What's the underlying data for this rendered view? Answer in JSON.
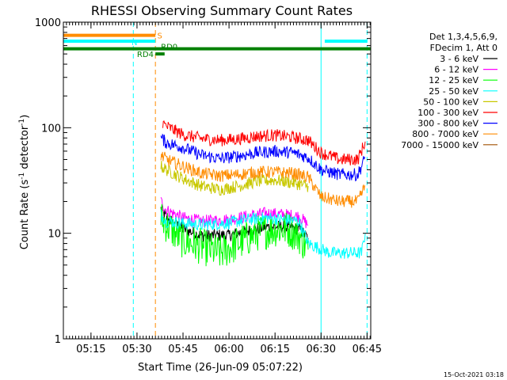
{
  "chart_data": {
    "type": "line",
    "title": "RHESSI Observing Summary Count Rates",
    "xlabel": "Start Time (26-Jun-09 05:07:22)",
    "ylabel_main": "Count Rate (s",
    "ylabel_sup1": "-1",
    "ylabel_mid": " detector",
    "ylabel_sup2": "-1",
    "ylabel_end": ")",
    "yscale": "log",
    "ylim": [
      1,
      1000
    ],
    "xlim_minutes": [
      5.1,
      6.77
    ],
    "x_ticks": [
      {
        "v": 5.25,
        "label": "05:15"
      },
      {
        "v": 5.5,
        "label": "05:30"
      },
      {
        "v": 5.75,
        "label": "05:45"
      },
      {
        "v": 6.0,
        "label": "06:00"
      },
      {
        "v": 6.25,
        "label": "06:15"
      },
      {
        "v": 6.5,
        "label": "06:30"
      },
      {
        "v": 6.75,
        "label": "06:45"
      }
    ],
    "y_ticks": [
      {
        "v": 1,
        "label": "1"
      },
      {
        "v": 10,
        "label": "10"
      },
      {
        "v": 100,
        "label": "100"
      },
      {
        "v": 1000,
        "label": "1000"
      }
    ],
    "legend": {
      "placement": "right",
      "header": [
        "Det 1,3,4,5,6,9,",
        "FDecim 1, Att 0"
      ]
    },
    "series": [
      {
        "name": "3 - 6 keV",
        "color": "#000000",
        "values": [
          [
            5.63,
            17
          ],
          [
            5.66,
            14
          ],
          [
            5.75,
            11
          ],
          [
            5.85,
            9.5
          ],
          [
            6.0,
            9.6
          ],
          [
            6.1,
            10.5
          ],
          [
            6.2,
            11.5
          ],
          [
            6.3,
            11.5
          ],
          [
            6.38,
            11
          ],
          [
            6.43,
            9
          ]
        ]
      },
      {
        "name": "6 - 12 keV",
        "color": "#ff00ff",
        "values": [
          [
            5.63,
            20
          ],
          [
            5.66,
            16.5
          ],
          [
            5.75,
            14
          ],
          [
            5.85,
            13
          ],
          [
            6.0,
            13.5
          ],
          [
            6.1,
            14.5
          ],
          [
            6.2,
            15.5
          ],
          [
            6.3,
            15
          ],
          [
            6.38,
            14.5
          ],
          [
            6.43,
            12
          ]
        ]
      },
      {
        "name": "12 - 25 keV",
        "color": "#00ff00",
        "values": [
          [
            5.63,
            14
          ],
          [
            5.66,
            12
          ],
          [
            5.75,
            8.5
          ],
          [
            5.85,
            7.5
          ],
          [
            5.95,
            6.5
          ],
          [
            6.05,
            8
          ],
          [
            6.15,
            10
          ],
          [
            6.25,
            11
          ],
          [
            6.32,
            11
          ],
          [
            6.38,
            9.5
          ],
          [
            6.43,
            7
          ]
        ]
      },
      {
        "name": "25 - 50 keV",
        "color": "#00ffff",
        "values": [
          [
            5.63,
            15
          ],
          [
            5.66,
            13
          ],
          [
            5.75,
            12.5
          ],
          [
            5.85,
            12
          ],
          [
            6.0,
            12.5
          ],
          [
            6.1,
            13.5
          ],
          [
            6.2,
            14
          ],
          [
            6.3,
            13.5
          ],
          [
            6.38,
            13
          ],
          [
            6.43,
            8
          ],
          [
            6.55,
            6.5
          ],
          [
            6.72,
            6.5
          ],
          [
            6.74,
            10
          ]
        ]
      },
      {
        "name": "50 - 100 keV",
        "color": "#c8c800",
        "values": [
          [
            5.63,
            43
          ],
          [
            5.66,
            40
          ],
          [
            5.75,
            33
          ],
          [
            5.85,
            28
          ],
          [
            5.95,
            26
          ],
          [
            6.05,
            28
          ],
          [
            6.15,
            31
          ],
          [
            6.25,
            32
          ],
          [
            6.35,
            30
          ],
          [
            6.43,
            28
          ]
        ]
      },
      {
        "name": "100 - 300 keV",
        "color": "#ff0000",
        "values": [
          [
            5.64,
            110
          ],
          [
            5.66,
            103
          ],
          [
            5.75,
            86
          ],
          [
            5.85,
            79
          ],
          [
            5.95,
            76
          ],
          [
            6.05,
            78
          ],
          [
            6.15,
            83
          ],
          [
            6.25,
            85
          ],
          [
            6.35,
            81
          ],
          [
            6.43,
            76
          ],
          [
            6.5,
            58
          ],
          [
            6.6,
            50
          ],
          [
            6.7,
            50
          ],
          [
            6.74,
            74
          ]
        ]
      },
      {
        "name": "300 - 800 keV",
        "color": "#0000ff",
        "values": [
          [
            5.63,
            80
          ],
          [
            5.66,
            72
          ],
          [
            5.75,
            65
          ],
          [
            5.85,
            55
          ],
          [
            5.95,
            51
          ],
          [
            6.05,
            54
          ],
          [
            6.15,
            58
          ],
          [
            6.25,
            60
          ],
          [
            6.35,
            58
          ],
          [
            6.43,
            52
          ],
          [
            6.5,
            40
          ],
          [
            6.6,
            36
          ],
          [
            6.7,
            36
          ],
          [
            6.74,
            52
          ]
        ]
      },
      {
        "name": "800 - 7000 keV",
        "color": "#ff8c00",
        "values": [
          [
            5.63,
            55
          ],
          [
            5.66,
            50
          ],
          [
            5.75,
            43
          ],
          [
            5.85,
            37
          ],
          [
            5.95,
            35
          ],
          [
            6.05,
            36
          ],
          [
            6.15,
            38
          ],
          [
            6.25,
            38
          ],
          [
            6.35,
            37
          ],
          [
            6.43,
            34
          ],
          [
            6.5,
            22
          ],
          [
            6.6,
            20
          ],
          [
            6.7,
            20
          ],
          [
            6.74,
            28
          ]
        ]
      },
      {
        "name": "7000 - 15000 keV",
        "color": "#a05000",
        "values": []
      }
    ],
    "flags": [
      {
        "label": "S",
        "color": "#ff8c00",
        "segments": [
          [
            5.1,
            5.6
          ]
        ],
        "level": 750
      },
      {
        "label": "N",
        "color": "#00ffff",
        "segments": [
          [
            5.1,
            5.6
          ],
          [
            6.52,
            6.75
          ]
        ],
        "level": 660
      },
      {
        "label": "RD0",
        "color": "#008000",
        "segments": [
          [
            5.1,
            6.77
          ]
        ],
        "level": 560
      },
      {
        "label": "RD4",
        "color": "#008000",
        "segments": [
          [
            5.6,
            5.65
          ]
        ],
        "level": 500
      }
    ],
    "markers": [
      {
        "color": "#00ffff",
        "x": [
          5.48,
          6.75
        ],
        "style": "dashed"
      },
      {
        "color": "#ff8c00",
        "x": [
          5.6
        ],
        "style": "dashed"
      },
      {
        "color": "#00ffff",
        "x": [
          5.1,
          6.5
        ],
        "style": "solid"
      }
    ],
    "timestamp": "15-Oct-2021 03:18"
  }
}
